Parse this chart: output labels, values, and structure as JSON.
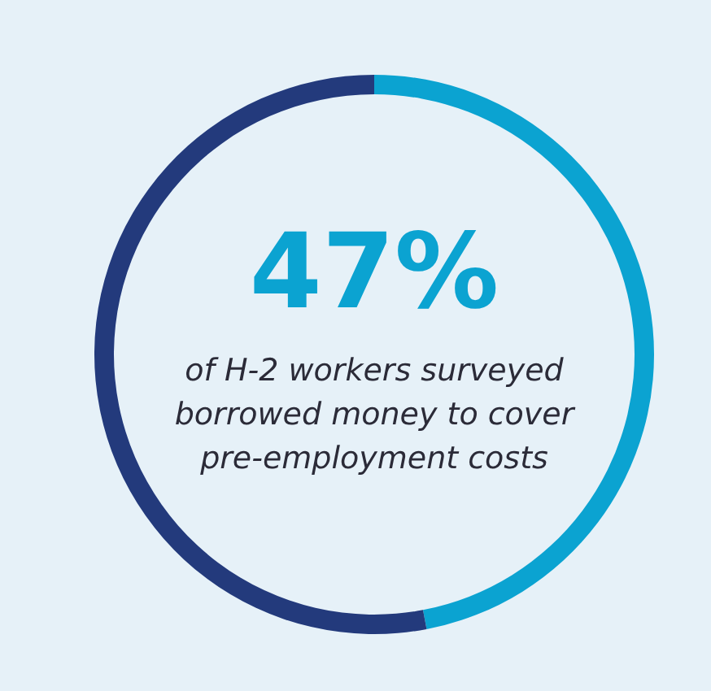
{
  "chart_data": {
    "type": "donut",
    "categories": [
      null,
      null
    ],
    "values": [
      47,
      53
    ],
    "colors": [
      "#0ba3d1",
      "#233a7c"
    ],
    "value_labels": [
      "47%",
      null
    ],
    "annotations": [
      "of H-2 workers surveyed borrowed money to cover pre-employment costs"
    ]
  }
}
